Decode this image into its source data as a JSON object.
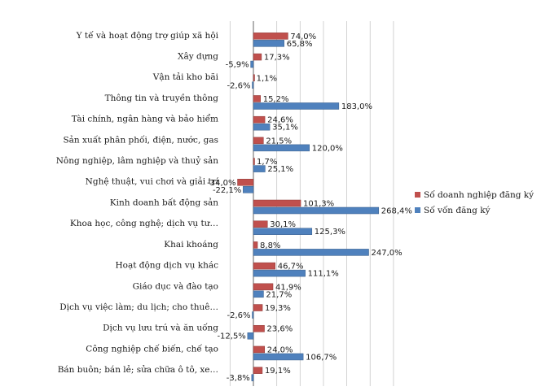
{
  "chart_data": {
    "type": "bar",
    "orientation": "horizontal",
    "categories": [
      "Y tế và hoạt động trợ giúp xã hội",
      "Xây dựng",
      "Vận tải kho bãi",
      "Thông tin và truyền thông",
      "Tài chính, ngân hàng và bảo hiểm",
      "Sản xuất phân phối, điện, nước, gas",
      "Nông nghiệp, lâm nghiệp và thuỷ sản",
      "Nghệ thuật, vui chơi và giải trí",
      "Kinh doanh bất động sản",
      "Khoa học, công nghệ; dịch vụ tư…",
      "Khai khoáng",
      "Hoạt động dịch vụ khác",
      "Giáo dục và đào tạo",
      "Dịch vụ việc làm; du lịch; cho thuê…",
      "Dịch vụ lưu trú và ăn uống",
      "Công nghiệp chế biến, chế tạo",
      "Bán buôn; bán lẻ; sửa chữa ô tô, xe…"
    ],
    "series": [
      {
        "name": "Số doanh nghiệp đăng ký",
        "color": "#c0504d",
        "values": [
          74.0,
          17.3,
          1.1,
          15.2,
          24.6,
          21.5,
          1.7,
          -34.0,
          101.3,
          30.1,
          8.8,
          46.7,
          41.9,
          19.3,
          23.6,
          24.0,
          19.1
        ],
        "labels": [
          "74,0%",
          "17,3%",
          "1,1%",
          "15,2%",
          "24,6%",
          "21,5%",
          "1,7%",
          "-34,0%",
          "101,3%",
          "30,1%",
          "8,8%",
          "46,7%",
          "41,9%",
          "19,3%",
          "23,6%",
          "24,0%",
          "19,1%"
        ]
      },
      {
        "name": "Số vốn đăng ký",
        "color": "#4f81bd",
        "values": [
          65.8,
          -5.9,
          -2.6,
          183.0,
          35.1,
          120.0,
          25.1,
          -22.1,
          268.4,
          125.3,
          247.0,
          111.1,
          21.7,
          -2.6,
          -12.5,
          106.7,
          -3.8
        ],
        "labels": [
          "65,8%",
          "-5,9%",
          "-2,6%",
          "183,0%",
          "35,1%",
          "120,0%",
          "25,1%",
          "-22,1%",
          "268,4%",
          "125,3%",
          "247,0%",
          "111,1%",
          "21,7%",
          "-2,6%",
          "-12,5%",
          "106,7%",
          "-3,8%"
        ]
      }
    ],
    "xlim": [
      -50,
      300
    ],
    "grid": true,
    "legend_position": "right"
  }
}
